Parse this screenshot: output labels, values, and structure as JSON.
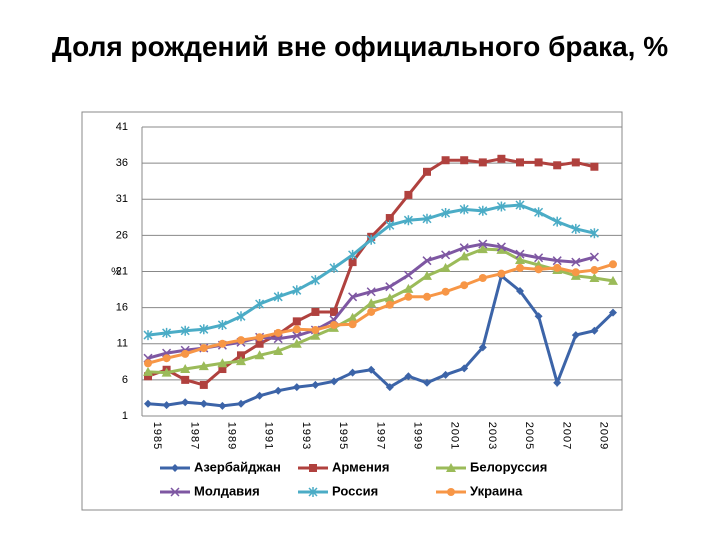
{
  "chart_data": {
    "type": "line",
    "title": "Доля рождений вне официального брака, %",
    "y_label": "%",
    "categories": [
      "1985",
      null,
      "1987",
      null,
      "1989",
      null,
      "1991",
      null,
      "1993",
      null,
      "1995",
      null,
      "1997",
      null,
      "1999",
      null,
      "2001",
      null,
      "2003",
      null,
      "2005",
      null,
      "2007",
      null,
      "2009",
      null
    ],
    "ylim": [
      1,
      41
    ],
    "yticks": [
      1,
      6,
      11,
      16,
      21,
      26,
      31,
      36,
      41
    ],
    "grid": true,
    "series": [
      {
        "name": "Азербайджан",
        "color": "#3c64a8",
        "marker": "diamond",
        "values": [
          2.7,
          2.5,
          2.9,
          2.7,
          2.4,
          2.7,
          3.8,
          4.5,
          5.0,
          5.3,
          5.8,
          7.0,
          7.4,
          5.0,
          6.5,
          5.6,
          6.7,
          7.6,
          10.5,
          20.4,
          18.3,
          14.8,
          5.6,
          12.2,
          12.8,
          15.3
        ]
      },
      {
        "name": "Армения",
        "color": "#b0413e",
        "marker": "square",
        "values": [
          6.5,
          7.4,
          6.0,
          5.3,
          7.5,
          9.4,
          11.0,
          12.3,
          14.1,
          15.4,
          15.4,
          22.3,
          25.8,
          28.4,
          31.6,
          34.8,
          36.4,
          36.4,
          36.1,
          36.6,
          36.1,
          36.1,
          35.7,
          36.1,
          35.5,
          null
        ]
      },
      {
        "name": "Белоруссия",
        "color": "#9bbb59",
        "marker": "triangle",
        "values": [
          7.1,
          7.0,
          7.5,
          7.9,
          8.3,
          8.6,
          9.4,
          10.0,
          11.0,
          12.1,
          13.2,
          14.6,
          16.6,
          17.3,
          18.6,
          20.4,
          21.5,
          23.1,
          24.1,
          24.0,
          22.6,
          21.9,
          21.2,
          20.4,
          20.1,
          19.7
        ]
      },
      {
        "name": "Молдавия",
        "color": "#7e57a2",
        "marker": "x",
        "values": [
          9.0,
          9.7,
          10.1,
          10.4,
          10.8,
          11.2,
          11.9,
          11.7,
          12.1,
          12.9,
          14.3,
          17.5,
          18.2,
          18.9,
          20.5,
          22.5,
          23.3,
          24.3,
          24.8,
          24.4,
          23.4,
          22.9,
          22.5,
          22.3,
          23.0,
          null
        ]
      },
      {
        "name": "Россия",
        "color": "#4bacc6",
        "marker": "star",
        "values": [
          12.2,
          12.5,
          12.8,
          13.0,
          13.6,
          14.8,
          16.5,
          17.5,
          18.4,
          19.8,
          21.5,
          23.3,
          25.4,
          27.4,
          28.1,
          28.3,
          29.1,
          29.6,
          29.4,
          30.0,
          30.2,
          29.2,
          27.9,
          26.9,
          26.3,
          null
        ]
      },
      {
        "name": "Украина",
        "color": "#f79646",
        "marker": "circle",
        "values": [
          8.3,
          9.0,
          9.6,
          10.4,
          11.0,
          11.5,
          11.9,
          12.5,
          13.0,
          12.9,
          13.6,
          13.7,
          15.4,
          16.4,
          17.5,
          17.5,
          18.2,
          19.1,
          20.1,
          20.7,
          21.5,
          21.3,
          21.5,
          20.9,
          21.2,
          22.0
        ]
      }
    ]
  }
}
